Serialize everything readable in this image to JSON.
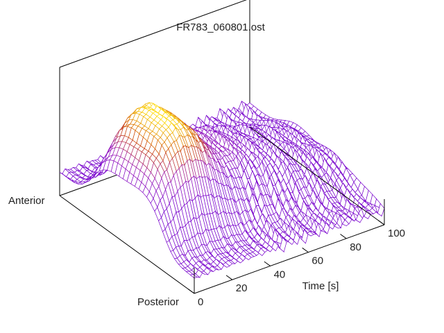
{
  "chart_data": {
    "type": "surface",
    "title": "FR783_060801.ost",
    "xlabel": "Time [s]",
    "xlim": [
      0,
      100
    ],
    "x_ticks": [
      {
        "value": 0,
        "label": "0"
      },
      {
        "value": 20,
        "label": "20"
      },
      {
        "value": 40,
        "label": "40"
      },
      {
        "value": 60,
        "label": "60"
      },
      {
        "value": 80,
        "label": "80"
      },
      {
        "value": 100,
        "label": "100"
      }
    ],
    "y_labels": {
      "front": "Posterior",
      "back": "Anterior"
    },
    "colormap": [
      "#7700cc",
      "#9a18b8",
      "#cc4400",
      "#ffdd00"
    ],
    "ridge": {
      "peak_time": 18,
      "peak_height": 0.92,
      "plateau_height": 0.56,
      "decay_time": 95,
      "final_height": 0.28,
      "anterior_edge_height": 0.18,
      "posterior_edge_height": 0.12,
      "ridge_width": 0.28
    }
  }
}
